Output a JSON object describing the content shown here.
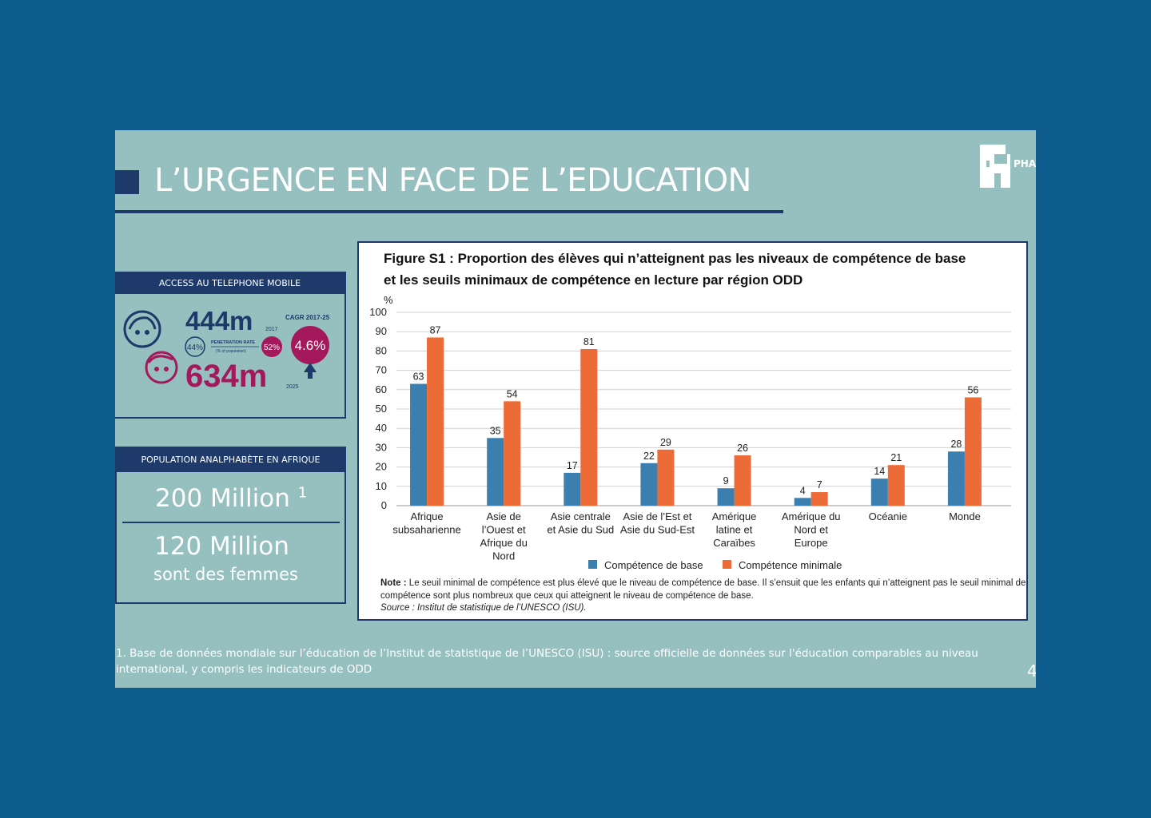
{
  "slide": {
    "title": "L’URGENCE EN FACE DE L’EDUCATION",
    "page_number": "4",
    "footnote": "1. Base de données mondiale sur l’éducation de  l’Institut de statistique de l’UNESCO (ISU) : source officielle de données sur l'éducation comparables au niveau international, y compris les indicateurs de  ODD"
  },
  "mobile_panel": {
    "header": "ACCESS AU TELEPHONE MOBILE",
    "value_2017": "444m",
    "year_2017": "2017",
    "value_2025": "634m",
    "year_2025": "2025",
    "penetration_2017": "44%",
    "penetration_label": "PENETRATION RATE",
    "penetration_sub": "(% of population)",
    "penetration_2025": "52%",
    "cagr_label": "CAGR 2017-25",
    "cagr_value": "4.6%"
  },
  "illiteracy_panel": {
    "header": "POPULATION ANALPHABÈTE EN AFRIQUE",
    "total": "200 Million",
    "total_ref": "1",
    "women": "120 Million",
    "women_sub": "sont des femmes"
  },
  "chart_data": {
    "type": "bar",
    "title_line1": "Figure S1 : Proportion des élèves qui n’atteignent pas les niveaux de compétence de base",
    "title_line2": "et les seuils minimaux de compétence en lecture par région ODD",
    "ylabel": "%",
    "ylim": [
      0,
      100
    ],
    "yticks": [
      "0",
      "10",
      "20",
      "30",
      "40",
      "50",
      "60",
      "70",
      "80",
      "90",
      "100"
    ],
    "grid": true,
    "legend_position": "bottom",
    "categories": [
      [
        "Afrique",
        "subsaharienne"
      ],
      [
        "Asie de",
        "l’Ouest et",
        "Afrique du",
        "Nord"
      ],
      [
        "Asie centrale",
        "et Asie du Sud"
      ],
      [
        "Asie de l’Est et",
        "Asie du Sud-Est"
      ],
      [
        "Amérique",
        "latine et",
        "Caraïbes"
      ],
      [
        "Amérique du",
        "Nord et",
        "Europe"
      ],
      [
        "Océanie"
      ],
      [
        "Monde"
      ]
    ],
    "series": [
      {
        "name": "Compétence de base",
        "color": "#3a7fb0",
        "values": [
          63,
          35,
          17,
          22,
          9,
          4,
          14,
          28
        ]
      },
      {
        "name": "Compétence minimale",
        "color": "#ec6b36",
        "values": [
          87,
          54,
          81,
          29,
          26,
          7,
          21,
          56
        ]
      }
    ],
    "note_label": "Note :",
    "note_text": "Le seuil minimal de compétence est plus élevé que le niveau de compétence de base. Il s’ensuit que les enfants qui n’atteignent pas le seuil minimal de compétence sont plus nombreux que ceux qui atteignent le niveau de compétence de base.",
    "source": "Source : Institut de statistique de l’UNESCO (ISU)."
  },
  "colors": {
    "background": "#0e5c8c",
    "slide": "#96bfbf",
    "navy": "#1d3a6b",
    "magenta": "#a3195b"
  }
}
